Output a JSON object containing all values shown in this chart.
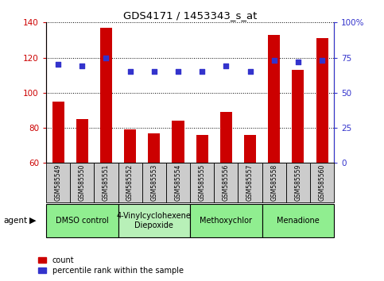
{
  "title": "GDS4171 / 1453343_s_at",
  "samples": [
    "GSM585549",
    "GSM585550",
    "GSM585551",
    "GSM585552",
    "GSM585553",
    "GSM585554",
    "GSM585555",
    "GSM585556",
    "GSM585557",
    "GSM585558",
    "GSM585559",
    "GSM585560"
  ],
  "counts": [
    95,
    85,
    137,
    79,
    77,
    84,
    76,
    89,
    76,
    133,
    113,
    131
  ],
  "percentile_ranks": [
    70,
    69,
    75,
    65,
    65,
    65,
    65,
    69,
    65,
    73,
    72,
    73
  ],
  "bar_color": "#cc0000",
  "dot_color": "#3333cc",
  "ylim_left": [
    60,
    140
  ],
  "ylim_right": [
    0,
    100
  ],
  "yticks_left": [
    60,
    80,
    100,
    120,
    140
  ],
  "yticks_right": [
    0,
    25,
    50,
    75,
    100
  ],
  "agent_groups": [
    {
      "label": "DMSO control",
      "start": 0,
      "end": 3,
      "color": "#90ee90"
    },
    {
      "label": "4-Vinylcyclohexene\nDiepoxide",
      "start": 3,
      "end": 6,
      "color": "#b8f0b8"
    },
    {
      "label": "Methoxychlor",
      "start": 6,
      "end": 9,
      "color": "#90ee90"
    },
    {
      "label": "Menadione",
      "start": 9,
      "end": 12,
      "color": "#90ee90"
    }
  ],
  "legend_count_label": "count",
  "legend_pct_label": "percentile rank within the sample",
  "agent_label": "agent",
  "sample_box_color": "#cccccc",
  "fig_bg": "#ffffff"
}
